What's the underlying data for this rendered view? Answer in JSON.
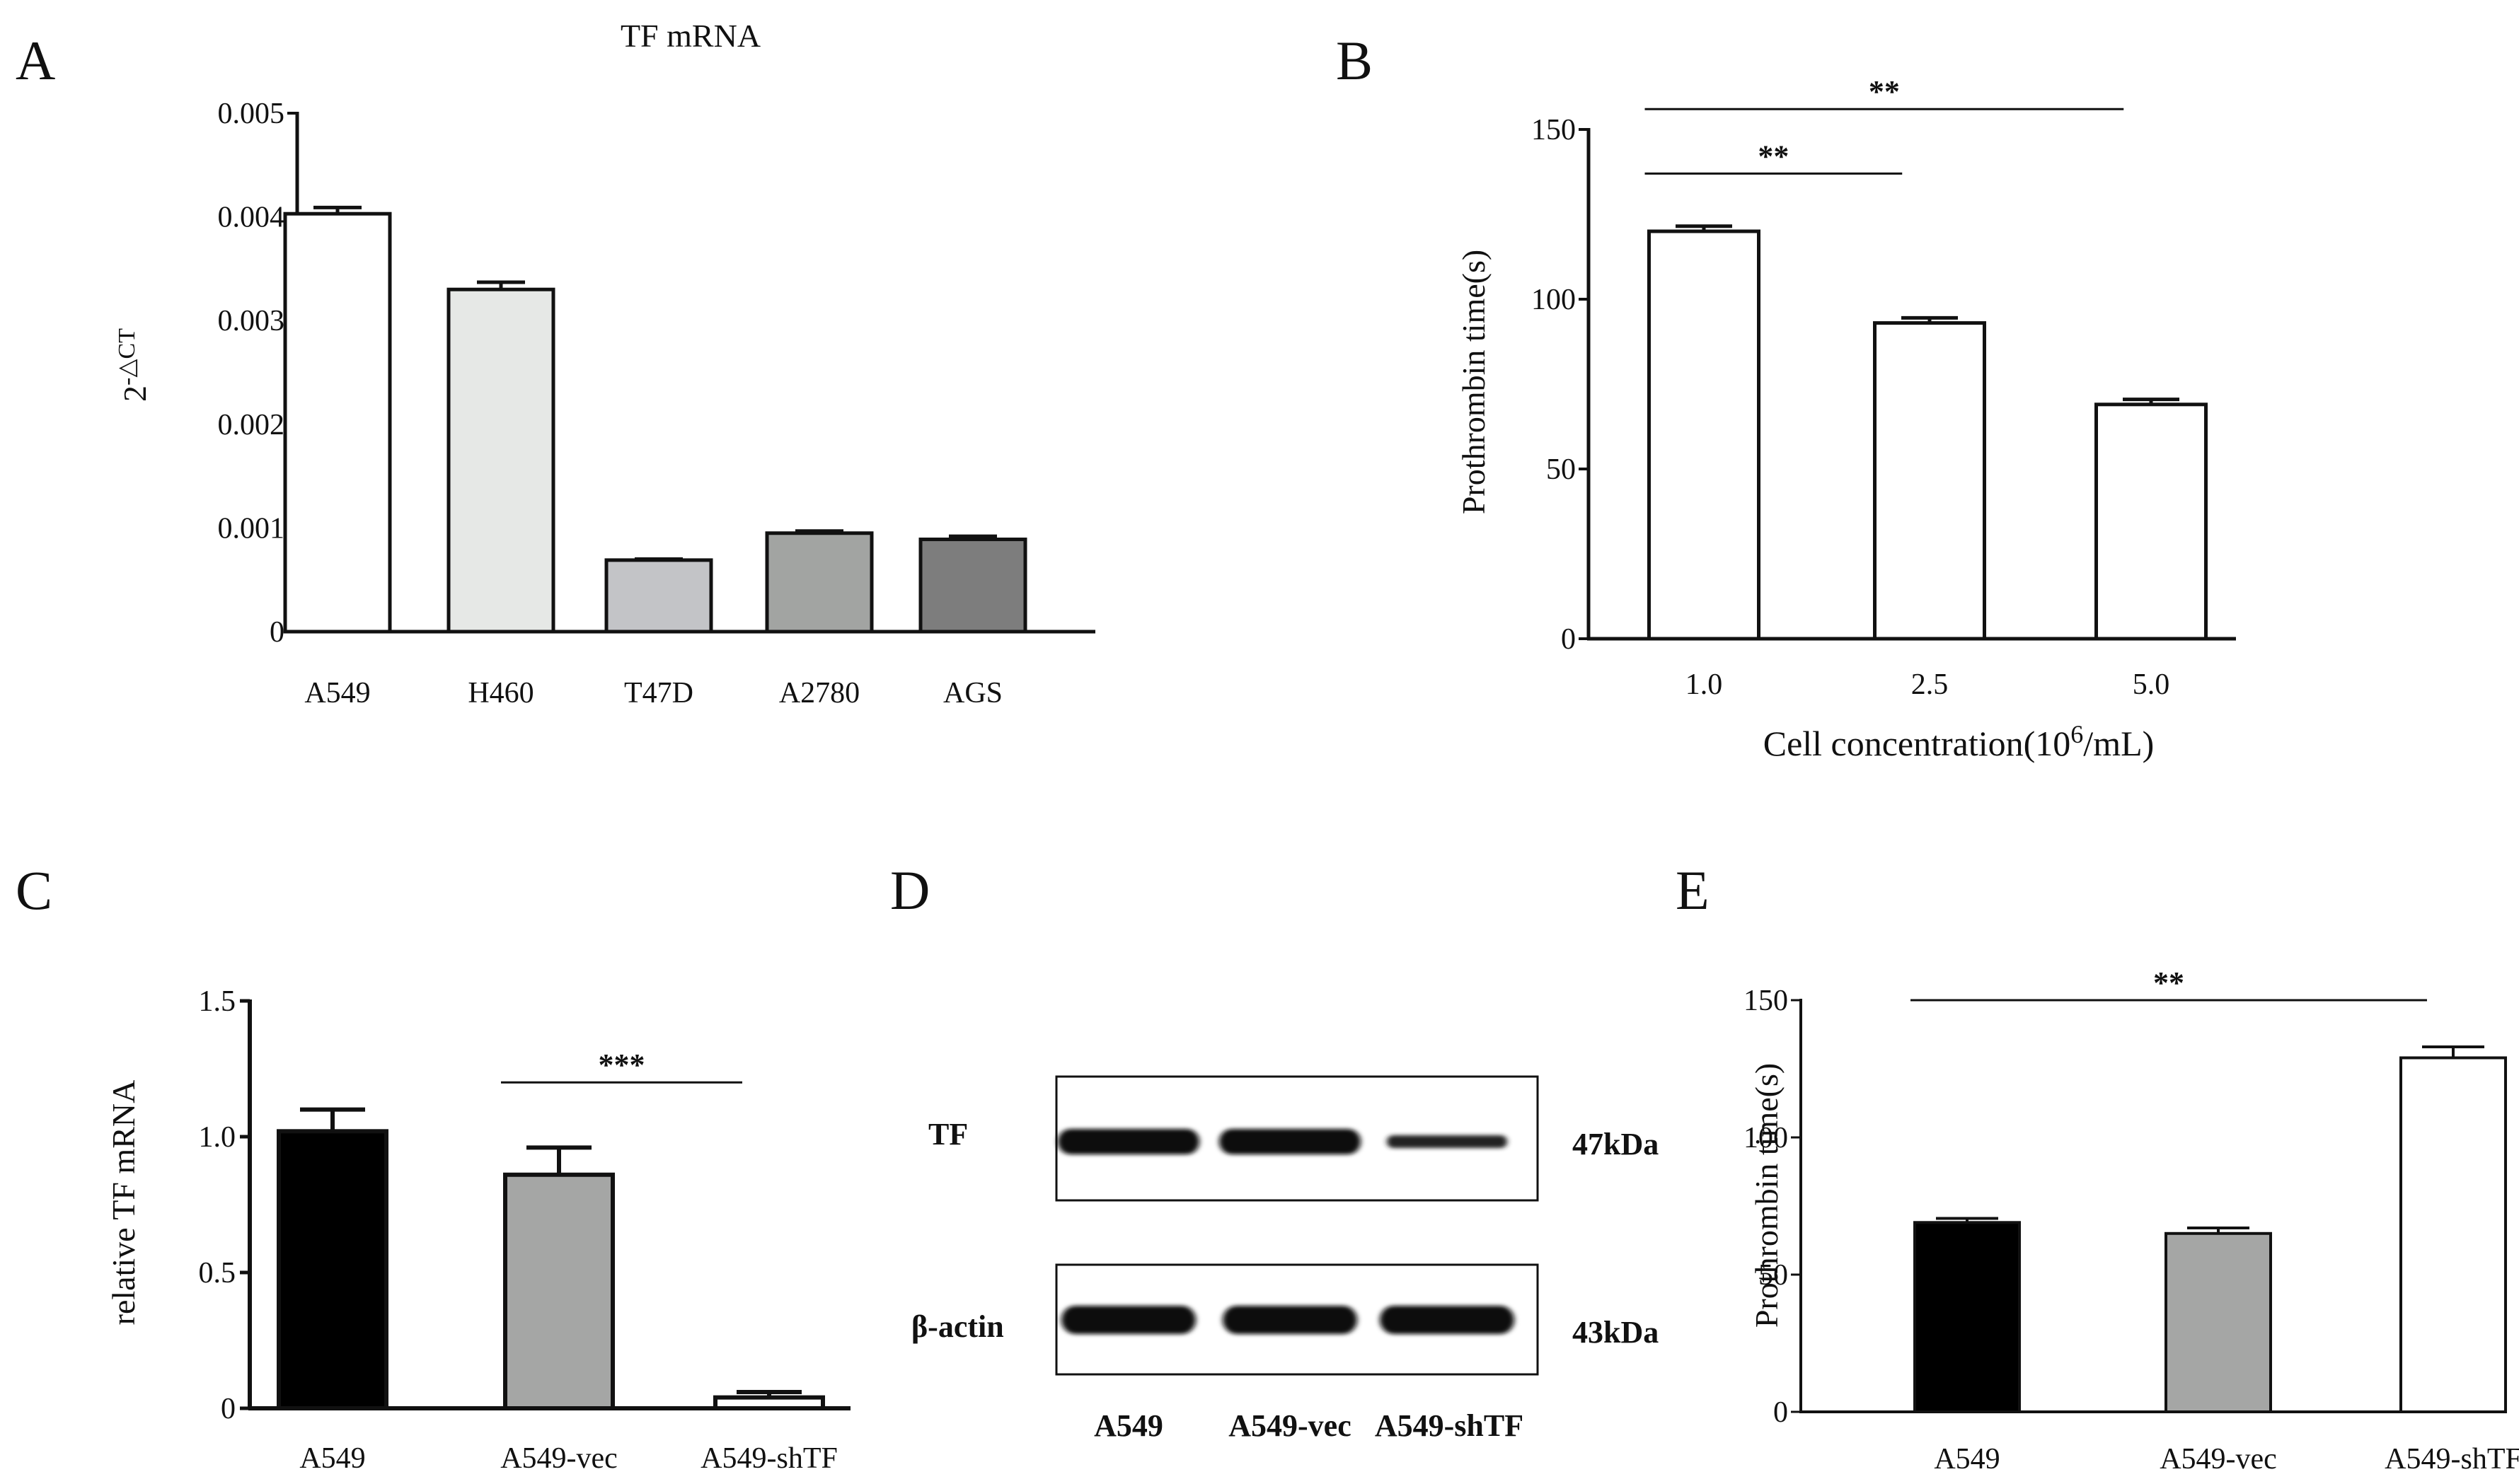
{
  "panels": {
    "A": "A",
    "B": "B",
    "C": "C",
    "D": "D",
    "E": "E"
  },
  "chart_data": [
    {
      "id": "A",
      "type": "bar",
      "title": "TF mRNA",
      "xlabel": "",
      "ylabel_base": "2",
      "ylabel_sup": "-△CT",
      "categories": [
        "A549",
        "H460",
        "T47D",
        "A2780",
        "AGS"
      ],
      "values": [
        0.00403,
        0.0033,
        0.00069,
        0.00095,
        0.00089
      ],
      "errors": [
        6e-05,
        7e-05,
        1e-05,
        2e-05,
        3e-05
      ],
      "colors": [
        "#ffffff",
        "#e6e8e6",
        "#c3c4c7",
        "#a2a4a2",
        "#7d7d7d"
      ],
      "ylim": [
        0,
        0.005
      ],
      "yticks": [
        0,
        0.001,
        0.002,
        0.003,
        0.004,
        0.005
      ],
      "ytick_labels": [
        "0",
        "0.001",
        "0.002",
        "0.003",
        "0.004",
        "0.005"
      ],
      "grid": false
    },
    {
      "id": "B",
      "type": "bar",
      "title": "",
      "xlabel_pre": "Cell concentration(10",
      "xlabel_sup": "6",
      "xlabel_post": "/mL)",
      "ylabel": "Prothrombin time(s)",
      "categories": [
        "1.0",
        "2.5",
        "5.0"
      ],
      "values": [
        120,
        93,
        69
      ],
      "errors": [
        1.5,
        1.5,
        1.5
      ],
      "colors": [
        "#ffffff",
        "#ffffff",
        "#ffffff"
      ],
      "ylim": [
        0,
        150
      ],
      "yticks": [
        0,
        50,
        100,
        150
      ],
      "ytick_labels": [
        "0",
        "50",
        "100",
        "150"
      ],
      "significance": [
        {
          "from": 0,
          "to": 2,
          "y": 156,
          "label": "**"
        },
        {
          "from": 0,
          "to": 1,
          "y": 137,
          "label": "**"
        }
      ],
      "grid": false
    },
    {
      "id": "C",
      "type": "bar",
      "title": "",
      "xlabel": "",
      "ylabel": "relative TF mRNA",
      "categories": [
        "A549",
        "A549-vec",
        "A549-shTF"
      ],
      "values": [
        1.02,
        0.86,
        0.04
      ],
      "errors": [
        0.08,
        0.1,
        0.02
      ],
      "colors": [
        "#000000",
        "#a5a6a5",
        "#ffffff"
      ],
      "ylim": [
        0,
        1.5
      ],
      "yticks": [
        0,
        0.5,
        1.0,
        1.5
      ],
      "ytick_labels": [
        "0",
        "0.5",
        "1.0",
        "1.5"
      ],
      "significance": [
        {
          "from": 1,
          "to": 2,
          "y": 1.2,
          "label": "***"
        }
      ],
      "grid": false
    },
    {
      "id": "E",
      "type": "bar",
      "title": "",
      "xlabel": "",
      "ylabel": "Prothrombin time(s)",
      "categories": [
        "A549",
        "A549-vec",
        "A549-shTF"
      ],
      "values": [
        69,
        65,
        129
      ],
      "errors": [
        1.5,
        2,
        4
      ],
      "colors": [
        "#000000",
        "#a5a6a5",
        "#ffffff"
      ],
      "ylim": [
        0,
        150
      ],
      "yticks": [
        0,
        50,
        100,
        150
      ],
      "ytick_labels": [
        "0",
        "50",
        "100",
        "150"
      ],
      "significance": [
        {
          "from": 0,
          "to": 2,
          "y": 150,
          "label": "**"
        }
      ],
      "grid": false
    }
  ],
  "blot": {
    "rows": [
      {
        "label": "TF",
        "size": "47kDa",
        "intensities": [
          1.0,
          0.9,
          0.45
        ]
      },
      {
        "label": "β-actin",
        "size": "43kDa",
        "intensities": [
          1.0,
          0.85,
          0.95
        ]
      }
    ],
    "lanes": [
      "A549",
      "A549-vec",
      "A549-shTF"
    ]
  }
}
